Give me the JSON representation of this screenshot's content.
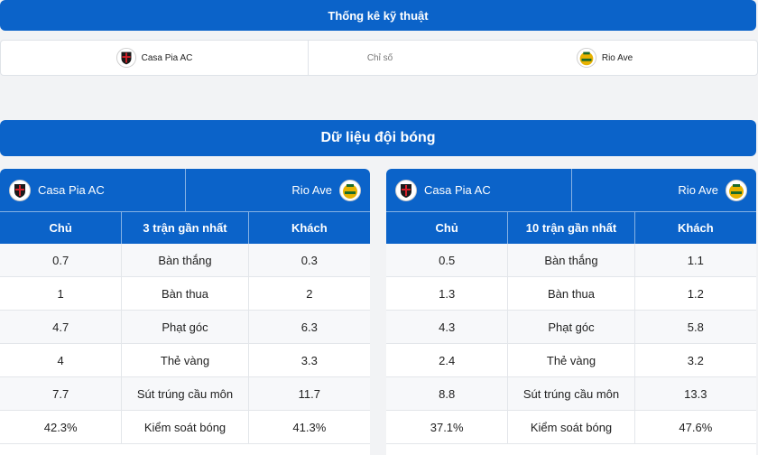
{
  "header": {
    "title": "Thống kê kỹ thuật"
  },
  "match": {
    "home": "Casa Pia AC",
    "label": "Chỉ số",
    "away": "Rio Ave"
  },
  "section": {
    "title": "Dữ liệu đội bóng"
  },
  "tables": [
    {
      "home": "Casa Pia AC",
      "away": "Rio Ave",
      "columns": [
        "Chủ",
        "3 trận gần nhất",
        "Khách"
      ],
      "rows": [
        [
          "0.7",
          "Bàn thắng",
          "0.3"
        ],
        [
          "1",
          "Bàn thua",
          "2"
        ],
        [
          "4.7",
          "Phạt góc",
          "6.3"
        ],
        [
          "4",
          "Thẻ vàng",
          "3.3"
        ],
        [
          "7.7",
          "Sút trúng cầu môn",
          "11.7"
        ],
        [
          "42.3%",
          "Kiểm soát bóng",
          "41.3%"
        ]
      ]
    },
    {
      "home": "Casa Pia AC",
      "away": "Rio Ave",
      "columns": [
        "Chủ",
        "10 trận gần nhất",
        "Khách"
      ],
      "rows": [
        [
          "0.5",
          "Bàn thắng",
          "1.1"
        ],
        [
          "1.3",
          "Bàn thua",
          "1.2"
        ],
        [
          "4.3",
          "Phạt góc",
          "5.8"
        ],
        [
          "2.4",
          "Thẻ vàng",
          "3.2"
        ],
        [
          "8.8",
          "Sút trúng cầu môn",
          "13.3"
        ],
        [
          "37.1%",
          "Kiểm soát bóng",
          "47.6%"
        ]
      ]
    }
  ]
}
